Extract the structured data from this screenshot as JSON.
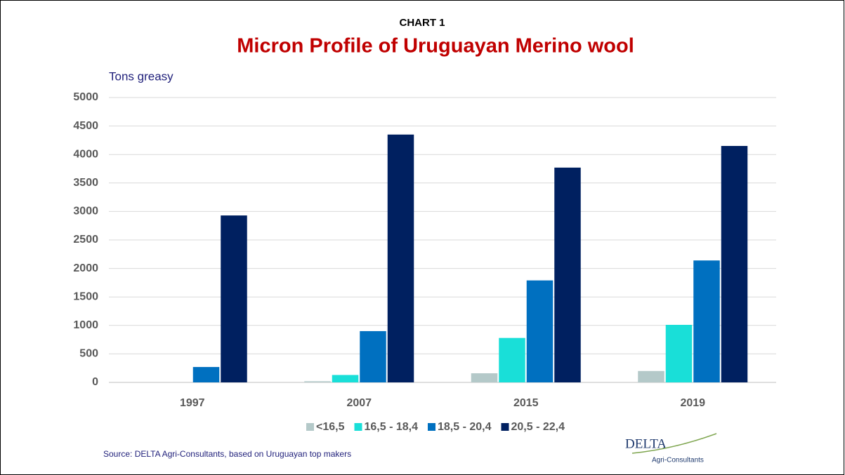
{
  "chart_data": {
    "type": "bar",
    "label": "CHART 1",
    "title": "Micron Profile of Uruguayan Merino wool",
    "ylabel": "Tons greasy",
    "source": "Source: DELTA Agri-Consultants, based on Uruguayan top makers",
    "logo": {
      "name": "DELTA",
      "subtitle": "Agri-Consultants"
    },
    "categories": [
      "1997",
      "2007",
      "2015",
      "2019"
    ],
    "series": [
      {
        "name": "<16,5",
        "color": "#b4c9c9",
        "values": [
          0,
          20,
          160,
          200
        ]
      },
      {
        "name": "16,5 - 18,4",
        "color": "#19dfd8",
        "values": [
          0,
          130,
          780,
          1010
        ]
      },
      {
        "name": "18,5 - 20,4",
        "color": "#0070c0",
        "values": [
          270,
          900,
          1790,
          2140
        ]
      },
      {
        "name": "20,5 - 22,4",
        "color": "#002060",
        "values": [
          2930,
          4350,
          3770,
          4150
        ]
      }
    ],
    "ylim": [
      0,
      5000
    ],
    "yticks": [
      0,
      500,
      1000,
      1500,
      2000,
      2500,
      3000,
      3500,
      4000,
      4500,
      5000
    ],
    "grid": true,
    "legend": "bottom"
  }
}
